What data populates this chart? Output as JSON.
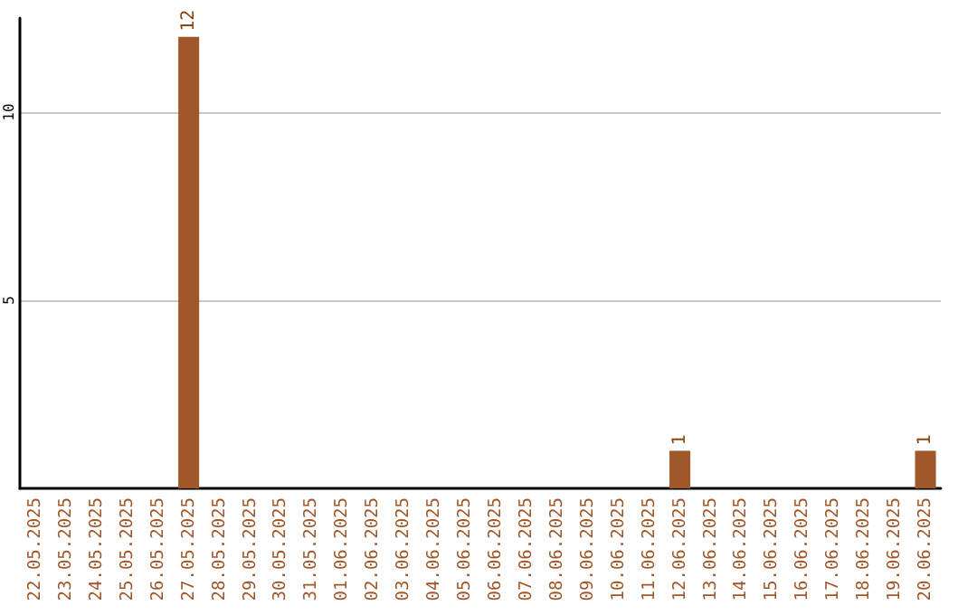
{
  "chart_data": {
    "type": "bar",
    "categories": [
      "22.05.2025",
      "23.05.2025",
      "24.05.2025",
      "25.05.2025",
      "26.05.2025",
      "27.05.2025",
      "28.05.2025",
      "29.05.2025",
      "30.05.2025",
      "31.05.2025",
      "01.06.2025",
      "02.06.2025",
      "03.06.2025",
      "04.06.2025",
      "05.06.2025",
      "06.06.2025",
      "07.06.2025",
      "08.06.2025",
      "09.06.2025",
      "10.06.2025",
      "11.06.2025",
      "12.06.2025",
      "13.06.2025",
      "14.06.2025",
      "15.06.2025",
      "16.06.2025",
      "17.06.2025",
      "18.06.2025",
      "19.06.2025",
      "20.06.2025"
    ],
    "values": [
      0,
      0,
      0,
      0,
      0,
      12,
      0,
      0,
      0,
      0,
      0,
      0,
      0,
      0,
      0,
      0,
      0,
      0,
      0,
      0,
      0,
      1,
      0,
      0,
      0,
      0,
      0,
      0,
      0,
      1
    ],
    "value_labels": [
      null,
      null,
      null,
      null,
      null,
      "12",
      null,
      null,
      null,
      null,
      null,
      null,
      null,
      null,
      null,
      null,
      null,
      null,
      null,
      null,
      null,
      "1",
      null,
      null,
      null,
      null,
      null,
      null,
      null,
      "1"
    ],
    "color": "#a0582a",
    "ylim": [
      0,
      12.5
    ],
    "yticks": [
      5,
      10
    ],
    "grid": "y"
  }
}
